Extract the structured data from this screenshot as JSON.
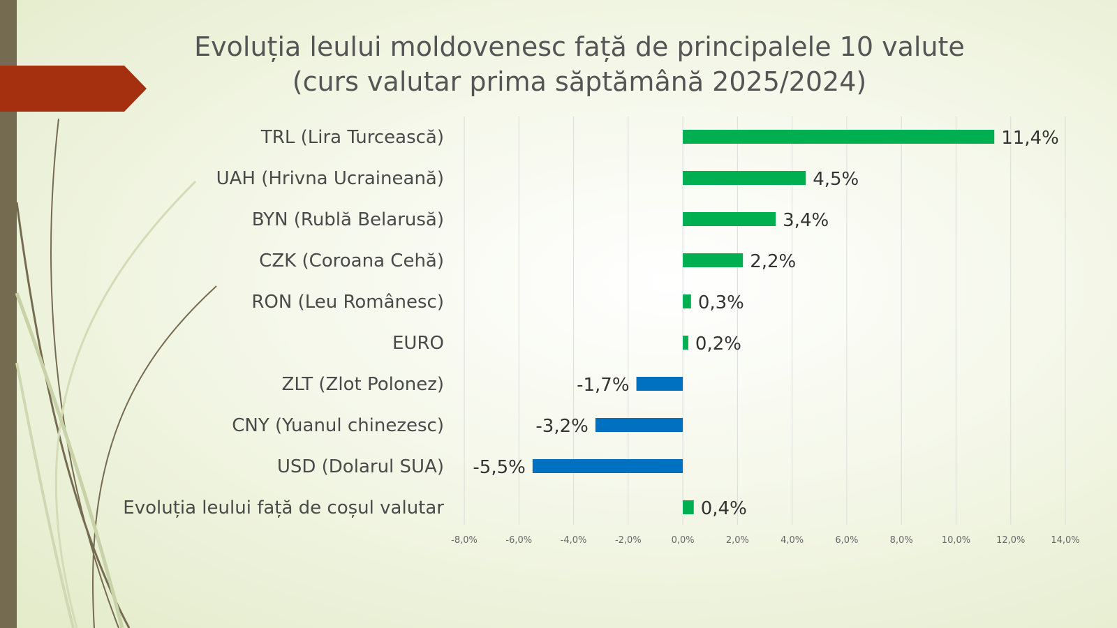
{
  "slide": {
    "title_line1": "Evoluția leului moldovenesc față de principalele 10 valute",
    "title_line2": "(curs valutar prima săptămână 2025/2024)"
  },
  "colors": {
    "positive": "#00b050",
    "negative": "#0070c0",
    "accent_arrow": "#a5300f",
    "side_bar": "#756b50"
  },
  "chart_data": {
    "type": "bar",
    "orientation": "horizontal",
    "title": "Evoluția leului moldovenesc față de principalele 10 valute (curs valutar prima săptămână 2025/2024)",
    "categories": [
      "TRL (Lira Turcească)",
      "UAH (Hrivna Ucraineană)",
      "BYN (Rublă Belarusă)",
      "CZK (Coroana Cehă)",
      "RON (Leu Românesc)",
      "EURO",
      "ZLT (Zlot Polonez)",
      "CNY (Yuanul chinezesc)",
      "USD (Dolarul SUA)",
      "Evoluția leului față de coșul valutar"
    ],
    "values": [
      11.4,
      4.5,
      3.4,
      2.2,
      0.3,
      0.2,
      -1.7,
      -3.2,
      -5.5,
      0.4
    ],
    "data_labels": [
      "11,4%",
      "4,5%",
      "3,4%",
      "2,2%",
      "0,3%",
      "0,2%",
      "-1,7%",
      "-3,2%",
      "-5,5%",
      "0,4%"
    ],
    "xlim": [
      -8,
      14
    ],
    "xticks": [
      -8,
      -6,
      -4,
      -2,
      0,
      2,
      4,
      6,
      8,
      10,
      12,
      14
    ],
    "xtick_labels": [
      "-8,0%",
      "-6,0%",
      "-4,0%",
      "-2,0%",
      "0,0%",
      "2,0%",
      "4,0%",
      "6,0%",
      "8,0%",
      "10,0%",
      "12,0%",
      "14,0%"
    ],
    "grid": true,
    "xlabel": "",
    "ylabel": ""
  }
}
